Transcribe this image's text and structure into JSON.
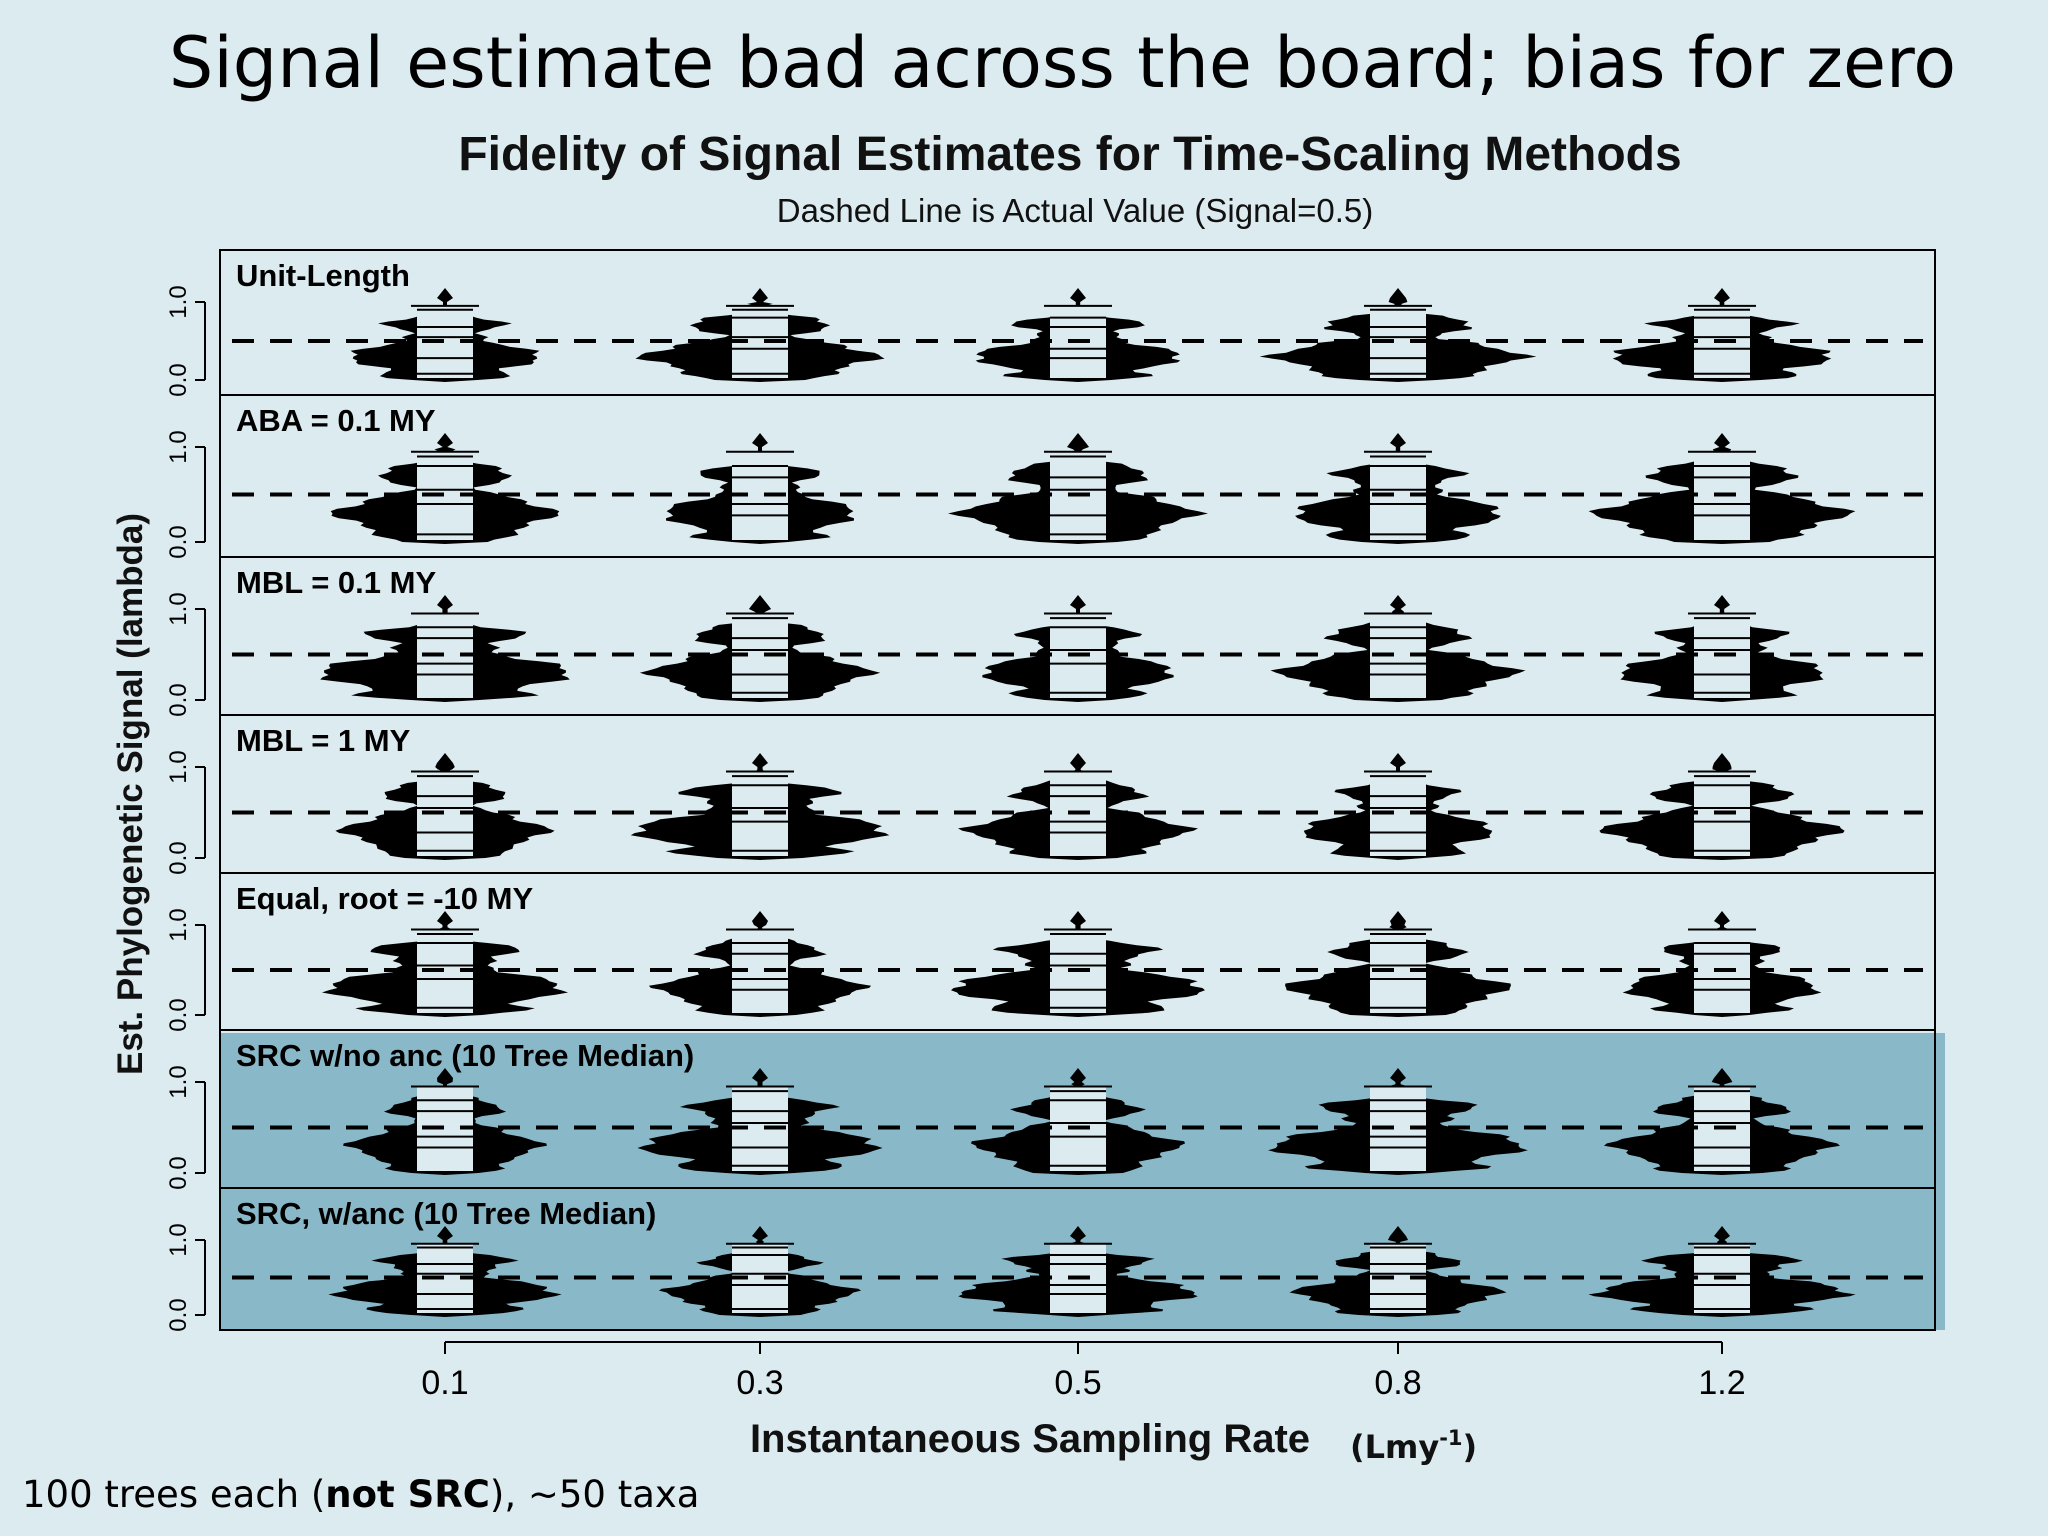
{
  "slide": {
    "title": "Signal estimate bad across the board; bias for zero",
    "footnote_pre": "100 trees each (",
    "footnote_bold": "not SRC",
    "footnote_post": "), ~50 taxa"
  },
  "colors": {
    "background": "#dcebf0",
    "highlight_panels": "#89b9c9",
    "violin_fill": "#000000",
    "violin_median_bars": "#dcebf0"
  },
  "chart_data": {
    "type": "violin",
    "title": "Fidelity of Signal Estimates for Time-Scaling Methods",
    "subtitle": "Dashed Line is Actual Value (Signal=0.5)",
    "xlabel": "Instantaneous Sampling Rate",
    "xlabel_unit_base": "(Lmy",
    "xlabel_unit_sup": "-1",
    "xlabel_unit_close": ")",
    "ylabel": "Est. Phylogenetic Signal (lambda)",
    "categories": [
      "0.1",
      "0.3",
      "0.5",
      "0.8",
      "1.2"
    ],
    "yticks": [
      "0.0",
      "1.0"
    ],
    "ylim": [
      0,
      1
    ],
    "reference_value": 0.5,
    "grid": false,
    "panels": [
      {
        "label": "Unit-Length",
        "highlighted": false
      },
      {
        "label": "ABA = 0.1 MY",
        "highlighted": false
      },
      {
        "label": "MBL = 0.1 MY",
        "highlighted": false
      },
      {
        "label": "MBL = 1 MY",
        "highlighted": false
      },
      {
        "label": "Equal, root = -10 MY",
        "highlighted": false
      },
      {
        "label": "SRC w/no anc (10 Tree Median)",
        "highlighted": true
      },
      {
        "label": "SRC, w/anc (10 Tree Median)",
        "highlighted": true
      }
    ]
  }
}
